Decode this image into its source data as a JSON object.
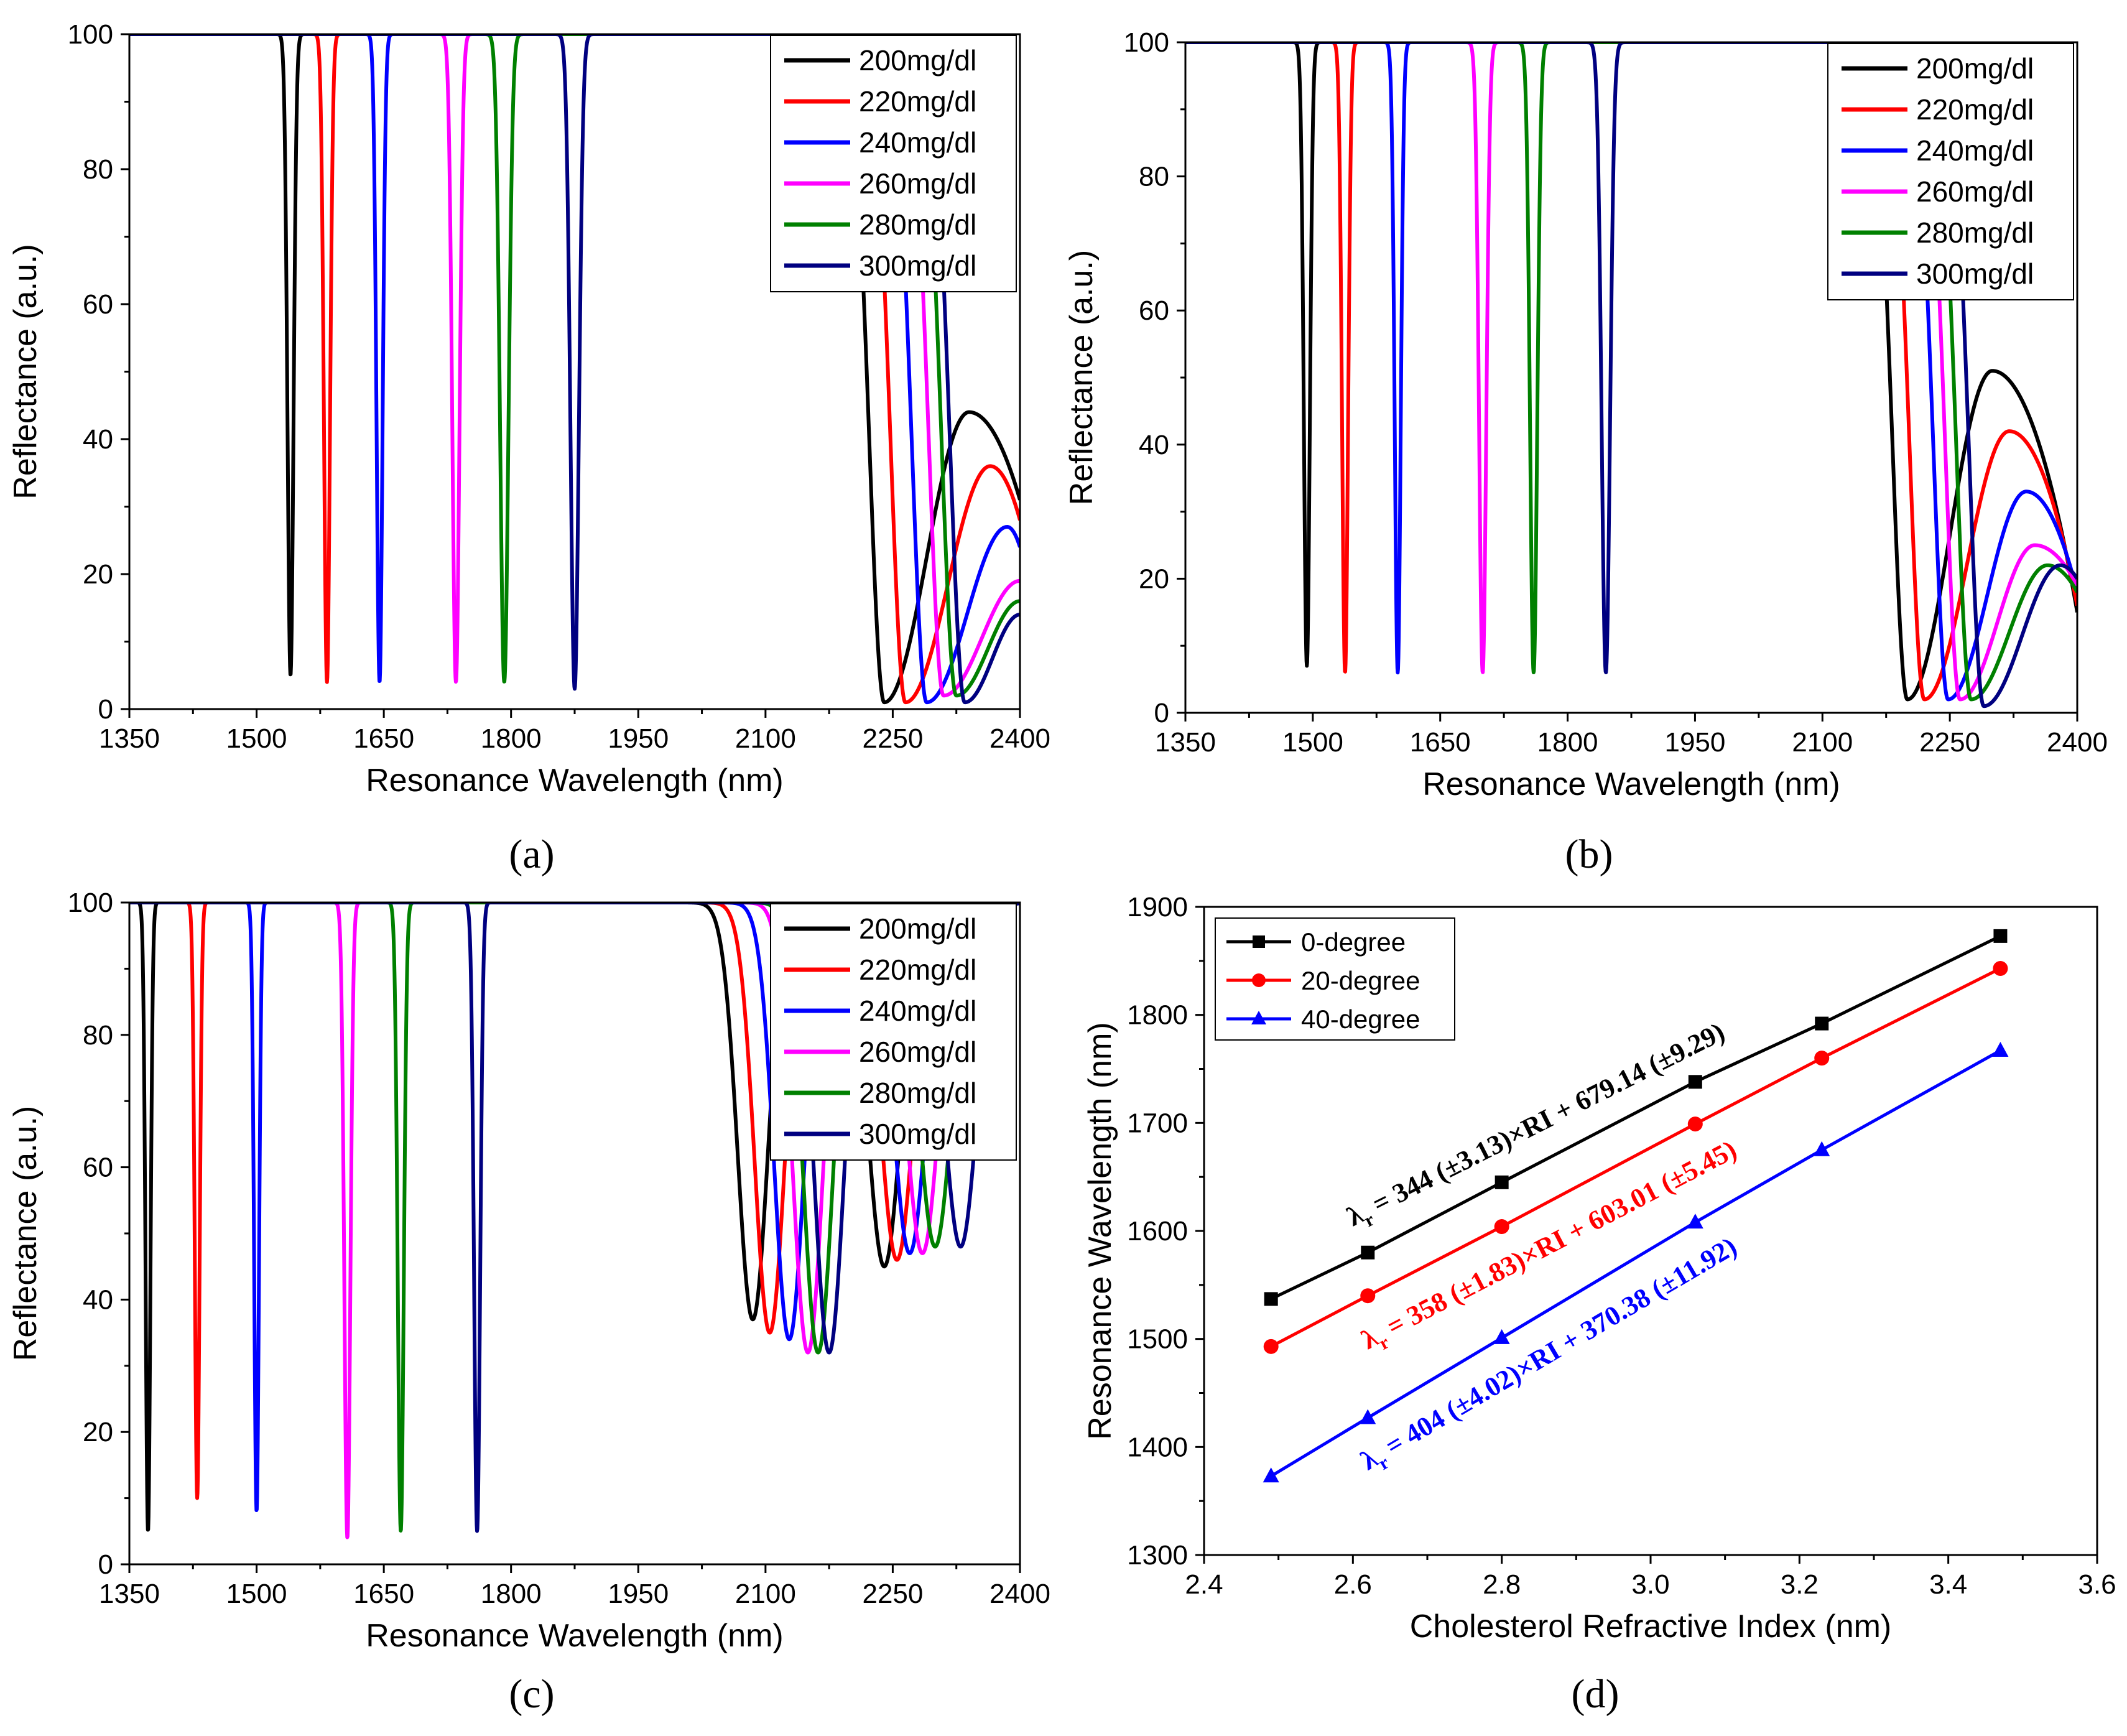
{
  "figure": {
    "panel_labels": [
      "(a)",
      "(b)",
      "(c)",
      "(d)"
    ]
  },
  "colors": {
    "200mg/dl": "#000000",
    "220mg/dl": "#ff0000",
    "240mg/dl": "#0000ff",
    "260mg/dl": "#ff00ff",
    "280mg/dl": "#008000",
    "300mg/dl": "#000080",
    "0-degree": "#000000",
    "20-degree": "#ff0000",
    "40-degree": "#0000ff"
  },
  "chart_data": [
    {
      "panel": "(a)",
      "type": "line",
      "xlabel": "Resonance Wavelength (nm)",
      "ylabel": "Reflectance (a.u.)",
      "xlim": [
        1350,
        2400
      ],
      "ylim": [
        0,
        100
      ],
      "xticks": [
        1350,
        1500,
        1650,
        1800,
        1950,
        2100,
        2250,
        2400
      ],
      "yticks": [
        0,
        20,
        40,
        60,
        80,
        100
      ],
      "legend": [
        "200mg/dl",
        "220mg/dl",
        "240mg/dl",
        "260mg/dl",
        "280mg/dl",
        "300mg/dl"
      ],
      "legend_position": "top-right",
      "series": [
        {
          "name": "200mg/dl",
          "dip1": {
            "x": 1540,
            "min": 5,
            "width": 5
          },
          "dip2": {
            "x": 2240,
            "min": 1,
            "width": 25
          },
          "tail": {
            "peak_x": 2340,
            "peak": 44,
            "end": 31
          }
        },
        {
          "name": "220mg/dl",
          "dip1": {
            "x": 1583,
            "min": 4,
            "width": 5
          },
          "dip2": {
            "x": 2265,
            "min": 1,
            "width": 25
          },
          "tail": {
            "peak_x": 2365,
            "peak": 36,
            "end": 28
          }
        },
        {
          "name": "240mg/dl",
          "dip1": {
            "x": 1645,
            "min": 4,
            "width": 5
          },
          "dip2": {
            "x": 2290,
            "min": 1,
            "width": 25
          },
          "tail": {
            "peak_x": 2385,
            "peak": 27,
            "end": 24
          }
        },
        {
          "name": "260mg/dl",
          "dip1": {
            "x": 1735,
            "min": 4,
            "width": 6
          },
          "dip2": {
            "x": 2310,
            "min": 2,
            "width": 25
          },
          "tail": {
            "peak_x": 2400,
            "peak": 19,
            "end": 19
          }
        },
        {
          "name": "280mg/dl",
          "dip1": {
            "x": 1792,
            "min": 4,
            "width": 7
          },
          "dip2": {
            "x": 2325,
            "min": 2,
            "width": 25
          },
          "tail": {
            "peak_x": 2400,
            "peak": 16,
            "end": 16
          }
        },
        {
          "name": "300mg/dl",
          "dip1": {
            "x": 1875,
            "min": 3,
            "width": 7
          },
          "dip2": {
            "x": 2335,
            "min": 1,
            "width": 25
          },
          "tail": {
            "peak_x": 2400,
            "peak": 14,
            "end": 14
          }
        }
      ]
    },
    {
      "panel": "(b)",
      "type": "line",
      "xlabel": "Resonance Wavelength (nm)",
      "ylabel": "Reflectance (a.u.)",
      "xlim": [
        1350,
        2400
      ],
      "ylim": [
        0,
        100
      ],
      "xticks": [
        1350,
        1500,
        1650,
        1800,
        1950,
        2100,
        2250,
        2400
      ],
      "yticks": [
        0,
        20,
        40,
        60,
        80,
        100
      ],
      "legend": [
        "200mg/dl",
        "220mg/dl",
        "240mg/dl",
        "260mg/dl",
        "280mg/dl",
        "300mg/dl"
      ],
      "legend_position": "top-right",
      "series": [
        {
          "name": "200mg/dl",
          "dip1": {
            "x": 1493,
            "min": 7,
            "width": 5
          },
          "dip2": {
            "x": 2200,
            "min": 2,
            "width": 25
          },
          "tail": {
            "peak_x": 2300,
            "peak": 51,
            "end": 15
          }
        },
        {
          "name": "220mg/dl",
          "dip1": {
            "x": 1538,
            "min": 6,
            "width": 5
          },
          "dip2": {
            "x": 2220,
            "min": 2,
            "width": 25
          },
          "tail": {
            "peak_x": 2320,
            "peak": 42,
            "end": 16
          }
        },
        {
          "name": "240mg/dl",
          "dip1": {
            "x": 1600,
            "min": 6,
            "width": 5
          },
          "dip2": {
            "x": 2248,
            "min": 2,
            "width": 25
          },
          "tail": {
            "peak_x": 2340,
            "peak": 33,
            "end": 18
          }
        },
        {
          "name": "260mg/dl",
          "dip1": {
            "x": 1700,
            "min": 6,
            "width": 6
          },
          "dip2": {
            "x": 2262,
            "min": 2,
            "width": 25
          },
          "tail": {
            "peak_x": 2350,
            "peak": 25,
            "end": 19
          }
        },
        {
          "name": "280mg/dl",
          "dip1": {
            "x": 1760,
            "min": 6,
            "width": 6
          },
          "dip2": {
            "x": 2275,
            "min": 2,
            "width": 25
          },
          "tail": {
            "peak_x": 2365,
            "peak": 22,
            "end": 18
          }
        },
        {
          "name": "300mg/dl",
          "dip1": {
            "x": 1845,
            "min": 6,
            "width": 7
          },
          "dip2": {
            "x": 2290,
            "min": 1,
            "width": 25
          },
          "tail": {
            "peak_x": 2380,
            "peak": 22,
            "end": 20
          }
        }
      ]
    },
    {
      "panel": "(c)",
      "type": "line",
      "xlabel": "Resonance Wavelength (nm)",
      "ylabel": "Reflectance (a.u.)",
      "xlim": [
        1350,
        2400
      ],
      "ylim": [
        0,
        100
      ],
      "xticks": [
        1350,
        1500,
        1650,
        1800,
        1950,
        2100,
        2250,
        2400
      ],
      "yticks": [
        0,
        20,
        40,
        60,
        80,
        100
      ],
      "legend": [
        "200mg/dl",
        "220mg/dl",
        "240mg/dl",
        "260mg/dl",
        "280mg/dl",
        "300mg/dl"
      ],
      "legend_position": "top-right",
      "series": [
        {
          "name": "200mg/dl",
          "dip1": {
            "x": 1372,
            "min": 5,
            "width": 4
          },
          "dip2": {
            "x": 2085,
            "min": 37,
            "width": 25
          },
          "dip3": {
            "x": 2240,
            "min": 45,
            "width": 28
          }
        },
        {
          "name": "220mg/dl",
          "dip1": {
            "x": 1430,
            "min": 10,
            "width": 4
          },
          "dip2": {
            "x": 2105,
            "min": 35,
            "width": 25
          },
          "dip3": {
            "x": 2255,
            "min": 46,
            "width": 28
          }
        },
        {
          "name": "240mg/dl",
          "dip1": {
            "x": 1500,
            "min": 8,
            "width": 4
          },
          "dip2": {
            "x": 2128,
            "min": 34,
            "width": 25
          },
          "dip3": {
            "x": 2270,
            "min": 47,
            "width": 28
          }
        },
        {
          "name": "260mg/dl",
          "dip1": {
            "x": 1607,
            "min": 4,
            "width": 5
          },
          "dip2": {
            "x": 2150,
            "min": 32,
            "width": 25
          },
          "dip3": {
            "x": 2285,
            "min": 47,
            "width": 28
          }
        },
        {
          "name": "280mg/dl",
          "dip1": {
            "x": 1670,
            "min": 5,
            "width": 5
          },
          "dip2": {
            "x": 2162,
            "min": 32,
            "width": 25
          },
          "dip3": {
            "x": 2300,
            "min": 48,
            "width": 28
          }
        },
        {
          "name": "300mg/dl",
          "dip1": {
            "x": 1760,
            "min": 5,
            "width": 5
          },
          "dip2": {
            "x": 2175,
            "min": 32,
            "width": 25
          },
          "dip3": {
            "x": 2330,
            "min": 48,
            "width": 28
          }
        }
      ]
    },
    {
      "panel": "(d)",
      "type": "line",
      "xlabel": "Cholesterol Refractive Index (nm)",
      "ylabel": "Resonance Wavelength (nm)",
      "xlim": [
        2.4,
        3.6
      ],
      "ylim": [
        1300,
        1900
      ],
      "xticks": [
        2.4,
        2.6,
        2.8,
        3.0,
        3.2,
        3.4,
        3.6
      ],
      "yticks": [
        1300,
        1400,
        1500,
        1600,
        1700,
        1800,
        1900
      ],
      "legend": [
        "0-degree",
        "20-degree",
        "40-degree"
      ],
      "legend_position": "top-left",
      "series": [
        {
          "name": "0-degree",
          "marker": "square",
          "x": [
            2.49,
            2.62,
            2.8,
            3.06,
            3.23,
            3.47
          ],
          "values": [
            1537,
            1580,
            1645,
            1738,
            1792,
            1873
          ]
        },
        {
          "name": "20-degree",
          "marker": "circle",
          "x": [
            2.49,
            2.62,
            2.8,
            3.06,
            3.23,
            3.47
          ],
          "values": [
            1493,
            1540,
            1604,
            1699,
            1760,
            1843
          ]
        },
        {
          "name": "40-degree",
          "marker": "triangle",
          "x": [
            2.49,
            2.62,
            2.8,
            3.06,
            3.23,
            3.47
          ],
          "values": [
            1373,
            1427,
            1501,
            1608,
            1675,
            1767
          ]
        }
      ],
      "annotations": [
        {
          "series": "0-degree",
          "prefix": "λ",
          "sub": "r",
          "text": " = 344 (±3.13)×RI + 679.14 (±9.29)"
        },
        {
          "series": "20-degree",
          "prefix": "λ",
          "sub": "r",
          "text": " = 358 (±1.83)×RI + 603.01 (±5.45)"
        },
        {
          "series": "40-degree",
          "prefix": "λ",
          "sub": "r",
          "text": " = 404 (±4.02)×RI + 370.38 (±11.92)"
        }
      ]
    }
  ]
}
